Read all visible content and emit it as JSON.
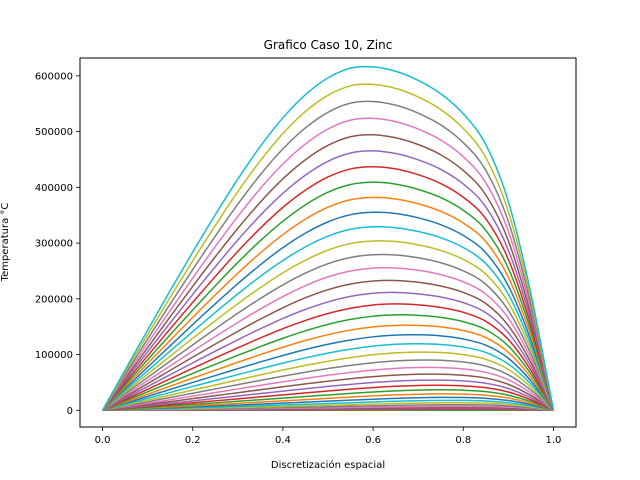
{
  "chart_data": {
    "type": "line",
    "title": "Grafico Caso 10, Zinc",
    "xlabel": "Discretización espacial",
    "ylabel": "Temperatura °C",
    "xlim": [
      -0.05,
      1.05
    ],
    "ylim": [
      -30000,
      632000
    ],
    "x_ticks": [
      "0.0",
      "0.2",
      "0.4",
      "0.6",
      "0.8",
      "1.0"
    ],
    "y_ticks": [
      "0",
      "100000",
      "200000",
      "300000",
      "400000",
      "500000",
      "600000"
    ],
    "grid": false,
    "legend": "none",
    "x": [
      0.0,
      0.05,
      0.1,
      0.15,
      0.2,
      0.25,
      0.3,
      0.35,
      0.4,
      0.45,
      0.5,
      0.55,
      0.6,
      0.65,
      0.7,
      0.75,
      0.8,
      0.85,
      0.9,
      0.95,
      1.0
    ],
    "series": [
      {
        "color": "#1f77b4",
        "values": [
          0,
          0,
          0,
          0,
          0,
          0,
          0,
          0,
          0,
          0,
          0,
          0,
          0,
          0,
          0,
          0,
          0,
          0,
          0,
          0,
          0
        ]
      },
      {
        "color": "#ff7f0e",
        "values": [
          0,
          0,
          0,
          1,
          1,
          1,
          1,
          1,
          1,
          2,
          2,
          2,
          2,
          2,
          2,
          2,
          2,
          2,
          2,
          1,
          0
        ]
      },
      {
        "color": "#2ca02c",
        "values": [
          0,
          20,
          40,
          60,
          80,
          100,
          120,
          140,
          160,
          180,
          200,
          220,
          250,
          280,
          300,
          320,
          330,
          320,
          260,
          140,
          0
        ]
      },
      {
        "color": "#d62728",
        "values": [
          0,
          100,
          200,
          300,
          400,
          500,
          600,
          720,
          840,
          980,
          1100,
          1250,
          1400,
          1550,
          1700,
          1800,
          1850,
          1800,
          1500,
          850,
          0
        ]
      },
      {
        "color": "#9467bd",
        "values": [
          0,
          150,
          310,
          470,
          640,
          810,
          990,
          1180,
          1380,
          1590,
          1820,
          2060,
          2310,
          2560,
          2790,
          2980,
          3050,
          2920,
          2430,
          1420,
          0
        ]
      },
      {
        "color": "#8c564b",
        "values": [
          0,
          250,
          500,
          760,
          1030,
          1310,
          1600,
          1900,
          2220,
          2560,
          2920,
          3300,
          3700,
          4090,
          4450,
          4740,
          4860,
          4670,
          3890,
          2270,
          0
        ]
      },
      {
        "color": "#e377c2",
        "values": [
          0,
          380,
          760,
          1150,
          1550,
          1970,
          2400,
          2850,
          3330,
          3840,
          4370,
          4930,
          5510,
          6070,
          6570,
          6930,
          7040,
          6740,
          5590,
          3250,
          0
        ]
      },
      {
        "color": "#7f7f7f",
        "values": [
          0,
          560,
          1120,
          1700,
          2290,
          2900,
          3530,
          4190,
          4880,
          5610,
          6360,
          7150,
          7950,
          8700,
          9360,
          9810,
          9900,
          9420,
          7780,
          4500,
          0
        ]
      },
      {
        "color": "#bcbd22",
        "values": [
          0,
          800,
          1600,
          2420,
          3250,
          4110,
          5000,
          5930,
          6890,
          7900,
          8940,
          10010,
          11080,
          12070,
          12900,
          13420,
          13460,
          12740,
          10470,
          6040,
          0
        ]
      },
      {
        "color": "#17becf",
        "values": [
          0,
          1100,
          2210,
          3340,
          4490,
          5670,
          6890,
          8150,
          9460,
          10810,
          12190,
          13590,
          14960,
          16210,
          17210,
          17770,
          17700,
          16660,
          13620,
          7830,
          0
        ]
      },
      {
        "color": "#1f77b4",
        "values": [
          0,
          1500,
          3010,
          4540,
          6100,
          7700,
          9340,
          11040,
          12780,
          14560,
          16360,
          18150,
          19880,
          21400,
          22560,
          23120,
          22900,
          21440,
          17460,
          10010,
          0
        ]
      },
      {
        "color": "#ff7f0e",
        "values": [
          0,
          2000,
          4010,
          6050,
          8120,
          10240,
          12410,
          14630,
          16890,
          19170,
          21450,
          23690,
          25790,
          27590,
          28870,
          29420,
          28970,
          26990,
          21900,
          12530,
          0
        ]
      },
      {
        "color": "#2ca02c",
        "values": [
          0,
          2610,
          5230,
          7880,
          10580,
          13320,
          16110,
          18950,
          21820,
          24690,
          27520,
          30240,
          32740,
          34810,
          36240,
          36750,
          36010,
          33420,
          27030,
          15440,
          0
        ]
      },
      {
        "color": "#d62728",
        "values": [
          0,
          3330,
          6680,
          10070,
          13500,
          16980,
          20510,
          24070,
          27650,
          31190,
          34620,
          37850,
          40740,
          43060,
          44540,
          44950,
          43880,
          40590,
          32750,
          18680,
          0
        ]
      },
      {
        "color": "#9467bd",
        "values": [
          0,
          4190,
          8390,
          12630,
          16910,
          21250,
          25620,
          30020,
          34400,
          38700,
          42790,
          46560,
          49830,
          52340,
          53840,
          54100,
          52640,
          48570,
          39110,
          22270,
          0
        ]
      },
      {
        "color": "#8c564b",
        "values": [
          0,
          5180,
          10380,
          15600,
          20870,
          26190,
          31540,
          36890,
          42190,
          47340,
          52180,
          56560,
          60300,
          63090,
          64630,
          64720,
          62800,
          57810,
          46460,
          26420,
          0
        ]
      },
      {
        "color": "#e377c2",
        "values": [
          0,
          6310,
          12630,
          18980,
          25380,
          31820,
          38280,
          44710,
          51050,
          57160,
          62830,
          67890,
          72110,
          75180,
          76690,
          76590,
          74130,
          68120,
          54660,
          31050,
          0
        ]
      },
      {
        "color": "#7f7f7f",
        "values": [
          0,
          7600,
          15210,
          22860,
          30540,
          38260,
          45980,
          53630,
          61120,
          68290,
          74870,
          80620,
          85340,
          88610,
          90050,
          89690,
          86600,
          79450,
          63670,
          36120,
          0
        ]
      },
      {
        "color": "#bcbd22",
        "values": [
          0,
          9040,
          18100,
          27180,
          36290,
          45420,
          54510,
          63490,
          72230,
          80530,
          88050,
          94490,
          99640,
          103000,
          104300,
          103600,
          99800,
          91400,
          73200,
          41500,
          0
        ]
      },
      {
        "color": "#17becf",
        "values": [
          0,
          10660,
          21340,
          32040,
          42740,
          53440,
          64070,
          74520,
          84620,
          94120,
          102600,
          109700,
          115100,
          118400,
          119400,
          118100,
          113500,
          103800,
          83000,
          47000,
          0
        ]
      },
      {
        "color": "#1f77b4",
        "values": [
          0,
          12460,
          24930,
          37410,
          49880,
          62310,
          74620,
          86680,
          98250,
          109000,
          118400,
          126100,
          131800,
          134900,
          135400,
          133500,
          127900,
          116800,
          93300,
          52800,
          0
        ]
      },
      {
        "color": "#ff7f0e",
        "values": [
          0,
          14420,
          28850,
          43270,
          57680,
          72000,
          86140,
          99930,
          113100,
          125200,
          135600,
          143900,
          149600,
          152400,
          152300,
          149700,
          143100,
          130400,
          104000,
          58800,
          0
        ]
      },
      {
        "color": "#2ca02c",
        "values": [
          0,
          16560,
          33110,
          49660,
          66170,
          82560,
          98690,
          114300,
          129200,
          142600,
          154100,
          163000,
          168800,
          171200,
          170300,
          166700,
          159000,
          144700,
          115200,
          65100,
          0
        ]
      },
      {
        "color": "#d62728",
        "values": [
          0,
          18860,
          37710,
          56530,
          75290,
          93880,
          112100,
          129700,
          146300,
          161200,
          173600,
          183000,
          188900,
          190900,
          189200,
          184600,
          175700,
          159600,
          127000,
          71700,
          0
        ]
      },
      {
        "color": "#9467bd",
        "values": [
          0,
          21310,
          42600,
          63860,
          85020,
          106000,
          126500,
          146200,
          164700,
          181000,
          194400,
          204300,
          209900,
          211400,
          208900,
          203300,
          193100,
          175200,
          139200,
          78600,
          0
        ]
      },
      {
        "color": "#8c564b",
        "values": [
          0,
          23900,
          47800,
          71600,
          95300,
          118700,
          141600,
          163500,
          183900,
          201900,
          216400,
          226600,
          232000,
          232900,
          229600,
          222900,
          211400,
          191500,
          152000,
          85700,
          0
        ]
      },
      {
        "color": "#e377c2",
        "values": [
          0,
          26600,
          53200,
          79700,
          106100,
          132100,
          157400,
          181600,
          204000,
          223600,
          239300,
          249900,
          255100,
          255300,
          251200,
          243400,
          230400,
          208500,
          165300,
          93100,
          0
        ]
      },
      {
        "color": "#7f7f7f",
        "values": [
          0,
          29500,
          58900,
          88200,
          117400,
          146100,
          174000,
          200500,
          224900,
          246100,
          263000,
          274100,
          279000,
          278600,
          273600,
          264700,
          250200,
          226100,
          179100,
          100800,
          0
        ]
      },
      {
        "color": "#bcbd22",
        "values": [
          0,
          32400,
          64800,
          97100,
          129100,
          160600,
          191200,
          220100,
          246500,
          269300,
          287300,
          299100,
          303700,
          302700,
          296800,
          286800,
          270700,
          244300,
          193300,
          108800,
          0
        ]
      },
      {
        "color": "#17becf",
        "values": [
          0,
          35500,
          70900,
          106200,
          141200,
          175500,
          208800,
          240200,
          268800,
          293200,
          312300,
          324700,
          329200,
          327500,
          320700,
          309600,
          291900,
          263200,
          208100,
          117000,
          0
        ]
      },
      {
        "color": "#1f77b4",
        "values": [
          0,
          38700,
          77300,
          115700,
          153800,
          191000,
          227100,
          261000,
          291800,
          317800,
          338000,
          350900,
          355300,
          353000,
          345300,
          333000,
          313700,
          282600,
          223200,
          125400,
          0
        ]
      },
      {
        "color": "#ff7f0e",
        "values": [
          0,
          42000,
          83900,
          125500,
          166700,
          206900,
          245900,
          282300,
          315200,
          342900,
          364300,
          377700,
          382000,
          379100,
          370500,
          357000,
          336000,
          302500,
          238700,
          134000,
          0
        ]
      },
      {
        "color": "#2ca02c",
        "values": [
          0,
          45400,
          90700,
          135600,
          180000,
          223300,
          265200,
          304200,
          339300,
          368600,
          391200,
          405100,
          409200,
          405800,
          396300,
          381600,
          358900,
          322900,
          254600,
          142800,
          0
        ]
      },
      {
        "color": "#d62728",
        "values": [
          0,
          48900,
          97700,
          146000,
          193700,
          240100,
          285000,
          326700,
          364000,
          394900,
          418600,
          433000,
          437000,
          433000,
          422600,
          406700,
          382200,
          343700,
          270800,
          151800,
          0
        ]
      },
      {
        "color": "#9467bd",
        "values": [
          0,
          52600,
          105000,
          156800,
          207800,
          257500,
          305400,
          349800,
          389300,
          421900,
          446700,
          461600,
          465300,
          460700,
          449400,
          432300,
          406000,
          364800,
          287300,
          161000,
          0
        ]
      },
      {
        "color": "#8c564b",
        "values": [
          0,
          56300,
          112400,
          167900,
          222400,
          275400,
          326400,
          373500,
          415200,
          449500,
          475300,
          490800,
          494200,
          489000,
          476800,
          458400,
          430200,
          386400,
          304100,
          170300,
          0
        ]
      },
      {
        "color": "#e377c2",
        "values": [
          0,
          60100,
          120000,
          179200,
          237300,
          293700,
          347800,
          397800,
          441800,
          477800,
          504600,
          520500,
          523700,
          517900,
          504600,
          484900,
          454900,
          408300,
          321200,
          179800,
          0
        ]
      },
      {
        "color": "#7f7f7f",
        "values": [
          0,
          64000,
          127800,
          190800,
          252500,
          312400,
          369800,
          422600,
          468900,
          506700,
          534600,
          551000,
          553900,
          547400,
          533100,
          512000,
          480100,
          430600,
          338600,
          189400,
          0
        ]
      },
      {
        "color": "#bcbd22",
        "values": [
          0,
          68000,
          135800,
          202600,
          268000,
          331400,
          392100,
          447800,
          496500,
          536100,
          565100,
          582100,
          584700,
          577500,
          562200,
          539700,
          505800,
          453400,
          356300,
          199200,
          0
        ]
      },
      {
        "color": "#17becf",
        "values": [
          0,
          72100,
          143900,
          214700,
          283800,
          350800,
          414800,
          473500,
          524700,
          566100,
          596300,
          613800,
          616100,
          608200,
          591800,
          567900,
          532000,
          476600,
          374400,
          209200,
          0
        ]
      }
    ]
  }
}
